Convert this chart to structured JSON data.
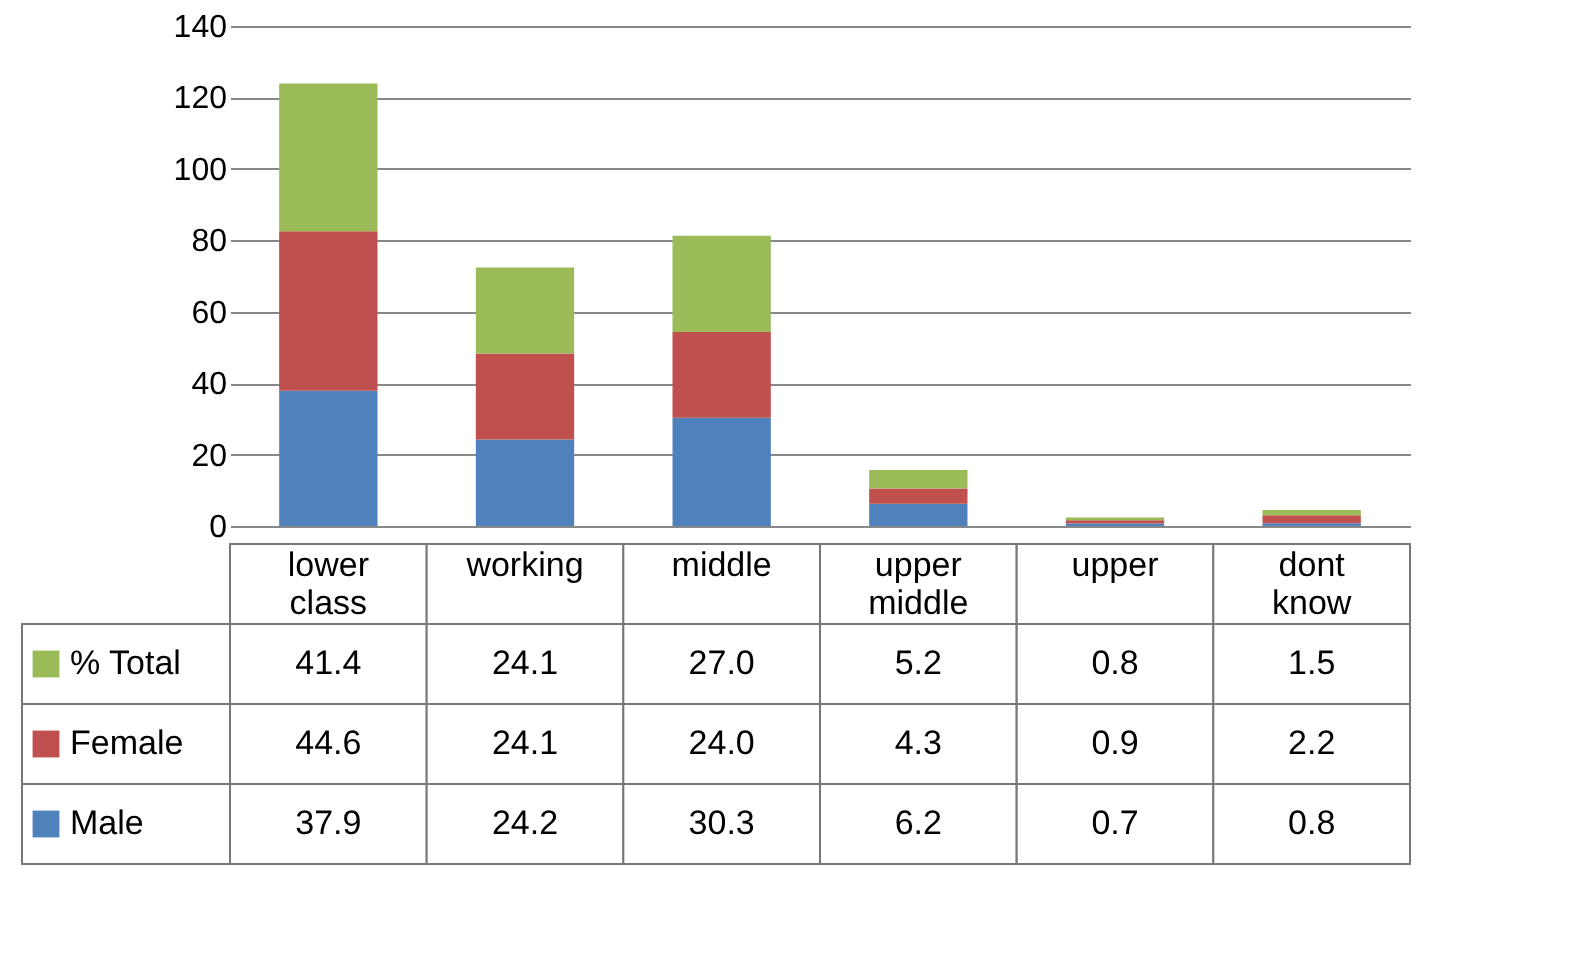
{
  "chart_data": {
    "type": "bar",
    "stacked": true,
    "categories": [
      "lower class",
      "working",
      "middle",
      "upper middle",
      "upper",
      "dont know"
    ],
    "series": [
      {
        "name": "Male",
        "color": "#4f81bd",
        "values": [
          37.9,
          24.2,
          30.3,
          6.2,
          0.7,
          0.8
        ],
        "value_labels": [
          "37.9",
          "24.2",
          "30.3",
          "6.2",
          "0.7",
          "0.8"
        ]
      },
      {
        "name": "Female",
        "color": "#c0504d",
        "values": [
          44.6,
          24.1,
          24.0,
          4.3,
          0.9,
          2.2
        ],
        "value_labels": [
          "44.6",
          "24.1",
          "24.0",
          "4.3",
          "0.9",
          "2.2"
        ]
      },
      {
        "name": "% Total",
        "color": "#9bbb59",
        "values": [
          41.4,
          24.1,
          27.0,
          5.2,
          0.8,
          1.5
        ],
        "value_labels": [
          "41.4",
          "24.1",
          "27.0",
          "5.2",
          "0.8",
          "1.5"
        ]
      }
    ],
    "ylim": [
      0,
      140
    ],
    "yticks": [
      0,
      20,
      40,
      60,
      80,
      100,
      120,
      140
    ],
    "grid": "y",
    "legend": "bottom left"
  }
}
